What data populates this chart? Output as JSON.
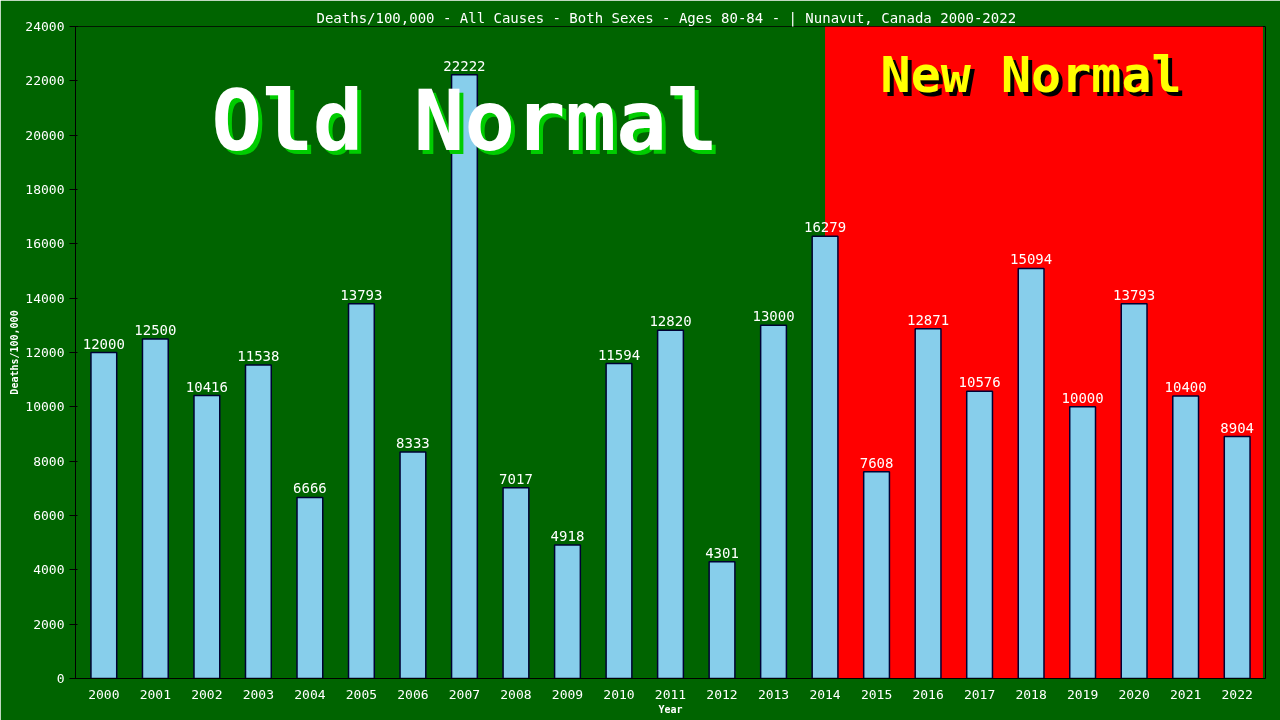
{
  "chart_data": {
    "type": "bar",
    "title": "Deaths/100,000 - All Causes - Both Sexes - Ages 80-84 -  | Nunavut, Canada 2000-2022",
    "xlabel": "Year",
    "ylabel": "Deaths/100,000",
    "categories": [
      "2000",
      "2001",
      "2002",
      "2003",
      "2004",
      "2005",
      "2006",
      "2007",
      "2008",
      "2009",
      "2010",
      "2011",
      "2012",
      "2013",
      "2014",
      "2015",
      "2016",
      "2017",
      "2018",
      "2019",
      "2020",
      "2021",
      "2022"
    ],
    "values": [
      12000,
      12500,
      10416,
      11538,
      6666,
      13793,
      8333,
      22222,
      7017,
      4918,
      11594,
      12820,
      4301,
      13000,
      16279,
      7608,
      12871,
      10576,
      15094,
      10000,
      13793,
      10400,
      8904
    ],
    "color": "#87ceeb",
    "data_labels": true,
    "ylim": [
      0,
      24000
    ],
    "yticks": [
      0,
      2000,
      4000,
      6000,
      8000,
      10000,
      12000,
      14000,
      16000,
      18000,
      20000,
      22000,
      24000
    ],
    "grid": false,
    "bands": [
      {
        "axis": "x",
        "from": "2000",
        "to": "2014",
        "label": "Old Normal",
        "color": "#006400"
      },
      {
        "axis": "x",
        "from": "2014",
        "to": "2022",
        "label": "New Normal",
        "color": "#ff0000"
      }
    ]
  }
}
